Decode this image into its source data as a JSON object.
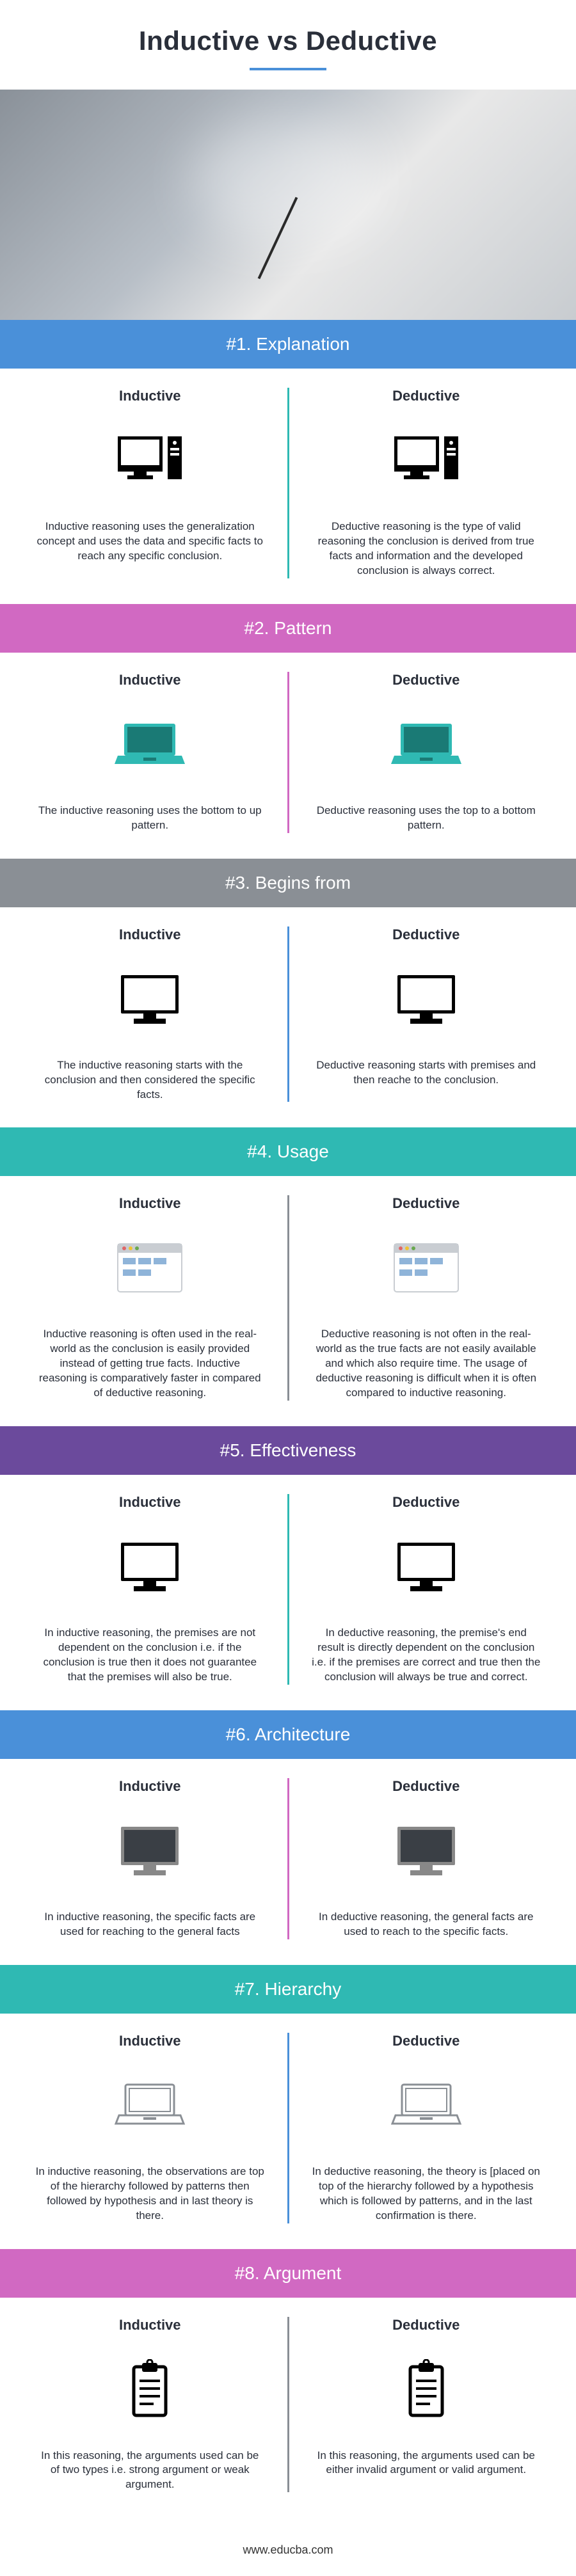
{
  "title": "Inductive vs Deductive",
  "footer": "www.educba.com",
  "left_label": "Inductive",
  "right_label": "Deductive",
  "sections": [
    {
      "header": "#1. Explanation",
      "header_bg": "#4a90d9",
      "divider_color": "#2fb9b3",
      "icon": "desktop-pc",
      "icon_color_left": "#000000",
      "icon_color_right": "#000000",
      "left_text": "Inductive reasoning uses the generalization concept and uses the data and specific facts to reach any specific conclusion.",
      "right_text": "Deductive reasoning is the type of valid reasoning the conclusion is derived from true facts and information and the developed conclusion is always correct."
    },
    {
      "header": "#2. Pattern",
      "header_bg": "#d169c2",
      "divider_color": "#d169c2",
      "icon": "laptop",
      "icon_color_left": "#2fb9b3",
      "icon_color_right": "#2fb9b3",
      "left_text": "The inductive reasoning uses the bottom to up pattern.",
      "right_text": "Deductive reasoning uses the top to a bottom pattern."
    },
    {
      "header": "#3. Begins from",
      "header_bg": "#8a8f95",
      "divider_color": "#4a90d9",
      "icon": "monitor",
      "icon_color_left": "#000000",
      "icon_color_right": "#000000",
      "left_text": "The inductive reasoning starts with the conclusion and then considered the specific facts.",
      "right_text": "Deductive reasoning starts with premises and then reache to the conclusion."
    },
    {
      "header": "#4. Usage",
      "header_bg": "#2fb9b3",
      "divider_color": "#8a8f95",
      "icon": "browser",
      "icon_color_left": "#c9cdd2",
      "icon_color_right": "#c9cdd2",
      "left_text": "Inductive reasoning is often used in the real-world as the conclusion is easily provided instead of getting true facts. Inductive reasoning is comparatively faster in compared of deductive reasoning.",
      "right_text": "Deductive reasoning is not often in the real-world as the true facts are not easily available and which also require time. The usage of deductive reasoning is difficult when it is often compared to inductive reasoning."
    },
    {
      "header": "#5. Effectiveness",
      "header_bg": "#6b4a9c",
      "divider_color": "#2fb9b3",
      "icon": "monitor",
      "icon_color_left": "#000000",
      "icon_color_right": "#000000",
      "left_text": "In inductive reasoning, the premises are not dependent on the conclusion i.e. if the conclusion is true then it does not guarantee that the premises will also be true.",
      "right_text": "In deductive reasoning, the premise's end result is directly dependent on the conclusion i.e. if the premises are correct and true then the conclusion will always be true and correct."
    },
    {
      "header": "#6. Architecture",
      "header_bg": "#4a90d9",
      "divider_color": "#d169c2",
      "icon": "monitor-dark",
      "icon_color_left": "#3a3f45",
      "icon_color_right": "#3a3f45",
      "left_text": "In inductive reasoning, the specific facts are used for reaching to the general facts",
      "right_text": "In deductive reasoning, the general facts are used to reach to the specific facts."
    },
    {
      "header": "#7. Hierarchy",
      "header_bg": "#2fb9b3",
      "divider_color": "#4a90d9",
      "icon": "laptop-outline",
      "icon_color_left": "#8a8f95",
      "icon_color_right": "#8a8f95",
      "left_text": "In inductive reasoning, the observations are top of the hierarchy followed by patterns then followed by hypothesis and in last theory is there.",
      "right_text": "In deductive reasoning, the theory is [placed on top of the hierarchy followed by a hypothesis which is followed by patterns, and in the last confirmation is there."
    },
    {
      "header": "#8. Argument",
      "header_bg": "#d169c2",
      "divider_color": "#8a8f95",
      "icon": "clipboard",
      "icon_color_left": "#000000",
      "icon_color_right": "#000000",
      "left_text": "In this reasoning, the arguments used can be of two types i.e. strong argument or weak argument.",
      "right_text": "In this reasoning, the arguments used can be either invalid argument or valid argument."
    }
  ]
}
